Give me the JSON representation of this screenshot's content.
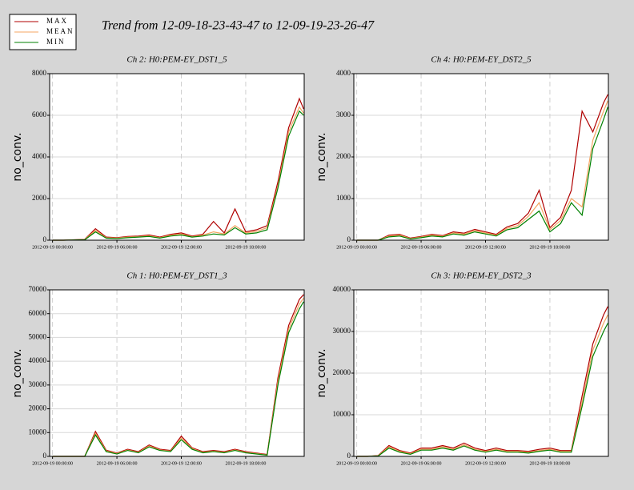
{
  "title": "Trend from 12-09-18-23-43-47 to 12-09-19-23-26-47",
  "chart_data": [
    {
      "type": "line",
      "title": "Ch 2: H0:PEM-EY_DST1_5",
      "y_label": "no_conv.",
      "x": [
        0,
        1,
        2,
        3,
        4,
        5,
        6,
        7,
        8,
        9,
        10,
        11,
        12,
        13,
        14,
        15,
        16,
        17,
        18,
        19,
        20,
        21,
        22,
        23,
        23.4
      ],
      "xlim": [
        -0.27,
        23.45
      ],
      "xticks": [
        {
          "value": 0,
          "label": "2012-09-19 00:00:00"
        },
        {
          "value": 6,
          "label": "2012-09-19 06:00:00"
        },
        {
          "value": 12,
          "label": "2012-09-19 12:00:00"
        },
        {
          "value": 18,
          "label": "2012-09-19 18:00:00"
        }
      ],
      "ylim": [
        0,
        8000
      ],
      "yticks": [
        0,
        2000,
        4000,
        6000,
        8000
      ],
      "grid": true,
      "series": [
        {
          "name": "MAX",
          "color": "#b00000",
          "values": [
            0,
            0,
            20,
            40,
            550,
            150,
            120,
            180,
            200,
            250,
            150,
            280,
            350,
            200,
            280,
            900,
            350,
            1500,
            400,
            500,
            700,
            2800,
            5400,
            6800,
            6300
          ]
        },
        {
          "name": "MEAN",
          "color": "#f4a460",
          "values": [
            0,
            0,
            15,
            30,
            470,
            120,
            100,
            150,
            170,
            210,
            120,
            240,
            300,
            170,
            240,
            400,
            300,
            700,
            350,
            420,
            600,
            2600,
            5200,
            6400,
            6100
          ]
        },
        {
          "name": "MIN",
          "color": "#008000",
          "values": [
            0,
            0,
            10,
            20,
            400,
            100,
            80,
            120,
            150,
            180,
            100,
            200,
            250,
            150,
            200,
            300,
            250,
            600,
            300,
            350,
            500,
            2500,
            5000,
            6200,
            6000
          ]
        }
      ]
    },
    {
      "type": "line",
      "title": "Ch 4: H0:PEM-EY_DST2_5",
      "y_label": "no_conv.",
      "x": [
        0,
        1,
        2,
        3,
        4,
        5,
        6,
        7,
        8,
        9,
        10,
        11,
        12,
        13,
        14,
        15,
        16,
        17,
        18,
        19,
        20,
        21,
        22,
        23,
        23.4
      ],
      "xlim": [
        -0.27,
        23.45
      ],
      "xticks": [
        {
          "value": 0,
          "label": "2012-09-19 00:00:00"
        },
        {
          "value": 6,
          "label": "2012-09-19 06:00:00"
        },
        {
          "value": 12,
          "label": "2012-09-19 12:00:00"
        },
        {
          "value": 18,
          "label": "2012-09-19 18:00:00"
        }
      ],
      "ylim": [
        0,
        4000
      ],
      "yticks": [
        0,
        1000,
        2000,
        3000,
        4000
      ],
      "grid": true,
      "series": [
        {
          "name": "MAX",
          "color": "#b00000",
          "values": [
            0,
            0,
            0,
            120,
            140,
            50,
            90,
            140,
            110,
            200,
            170,
            260,
            200,
            140,
            320,
            400,
            650,
            1200,
            300,
            550,
            1200,
            3100,
            2600,
            3300,
            3500
          ]
        },
        {
          "name": "MEAN",
          "color": "#f4a460",
          "values": [
            0,
            0,
            0,
            100,
            120,
            40,
            75,
            120,
            95,
            175,
            145,
            230,
            175,
            120,
            285,
            350,
            575,
            900,
            250,
            475,
            1000,
            800,
            2400,
            3100,
            3350
          ]
        },
        {
          "name": "MIN",
          "color": "#008000",
          "values": [
            0,
            0,
            0,
            80,
            100,
            30,
            60,
            100,
            80,
            150,
            120,
            200,
            150,
            100,
            250,
            300,
            500,
            700,
            200,
            400,
            900,
            600,
            2200,
            2900,
            3200
          ]
        }
      ]
    },
    {
      "type": "line",
      "title": "Ch 1: H0:PEM-EY_DST1_3",
      "y_label": "no_conv.",
      "x": [
        0,
        1,
        2,
        3,
        4,
        5,
        6,
        7,
        8,
        9,
        10,
        11,
        12,
        13,
        14,
        15,
        16,
        17,
        18,
        19,
        20,
        21,
        22,
        23,
        23.4
      ],
      "xlim": [
        -0.27,
        23.45
      ],
      "xticks": [
        {
          "value": 0,
          "label": "2012-09-19 00:00:00"
        },
        {
          "value": 6,
          "label": "2012-09-19 06:00:00"
        },
        {
          "value": 12,
          "label": "2012-09-19 12:00:00"
        },
        {
          "value": 18,
          "label": "2012-09-19 18:00:00"
        }
      ],
      "ylim": [
        0,
        70000
      ],
      "yticks": [
        0,
        10000,
        20000,
        30000,
        40000,
        50000,
        60000,
        70000
      ],
      "grid": true,
      "series": [
        {
          "name": "MAX",
          "color": "#b00000",
          "values": [
            0,
            0,
            0,
            0,
            10500,
            2600,
            1400,
            3000,
            2000,
            4800,
            3000,
            2500,
            8500,
            3600,
            2000,
            2500,
            2000,
            3000,
            2000,
            1400,
            800,
            33000,
            55000,
            66000,
            68000
          ]
        },
        {
          "name": "MEAN",
          "color": "#f4a460",
          "values": [
            0,
            0,
            0,
            0,
            9700,
            2300,
            1200,
            2700,
            1700,
            4400,
            2700,
            2200,
            7700,
            3300,
            1700,
            2200,
            1700,
            2700,
            1700,
            1200,
            650,
            31500,
            53500,
            64000,
            66500
          ]
        },
        {
          "name": "MIN",
          "color": "#008000",
          "values": [
            0,
            0,
            0,
            0,
            9000,
            2000,
            1000,
            2500,
            1500,
            4000,
            2500,
            2000,
            7000,
            3000,
            1500,
            2000,
            1500,
            2500,
            1500,
            1000,
            500,
            30000,
            52000,
            62000,
            65000
          ]
        }
      ]
    },
    {
      "type": "line",
      "title": "Ch 3: H0:PEM-EY_DST2_3",
      "y_label": "no_conv.",
      "x": [
        0,
        1,
        2,
        3,
        4,
        5,
        6,
        7,
        8,
        9,
        10,
        11,
        12,
        13,
        14,
        15,
        16,
        17,
        18,
        19,
        20,
        21,
        22,
        23,
        23.4
      ],
      "xlim": [
        -0.27,
        23.45
      ],
      "xticks": [
        {
          "value": 0,
          "label": "2012-09-19 00:00:00"
        },
        {
          "value": 6,
          "label": "2012-09-19 06:00:00"
        },
        {
          "value": 12,
          "label": "2012-09-19 12:00:00"
        },
        {
          "value": 18,
          "label": "2012-09-19 18:00:00"
        }
      ],
      "ylim": [
        0,
        40000
      ],
      "yticks": [
        0,
        10000,
        20000,
        30000,
        40000
      ],
      "grid": true,
      "series": [
        {
          "name": "MAX",
          "color": "#b00000",
          "values": [
            0,
            0,
            200,
            2600,
            1400,
            800,
            2000,
            2000,
            2600,
            2000,
            3200,
            2000,
            1400,
            2000,
            1400,
            1400,
            1200,
            1700,
            2000,
            1400,
            1400,
            14500,
            27000,
            34000,
            36000
          ]
        },
        {
          "name": "MEAN",
          "color": "#f4a460",
          "values": [
            0,
            0,
            150,
            2300,
            1200,
            650,
            1700,
            1700,
            2300,
            1700,
            2800,
            1700,
            1200,
            1700,
            1200,
            1200,
            1000,
            1400,
            1700,
            1200,
            1200,
            13000,
            25500,
            32000,
            34000
          ]
        },
        {
          "name": "MIN",
          "color": "#008000",
          "values": [
            0,
            0,
            100,
            2000,
            1000,
            500,
            1500,
            1500,
            2000,
            1500,
            2500,
            1500,
            1000,
            1500,
            1000,
            1000,
            800,
            1200,
            1500,
            1000,
            1000,
            12000,
            24000,
            30000,
            32000
          ]
        }
      ]
    }
  ]
}
